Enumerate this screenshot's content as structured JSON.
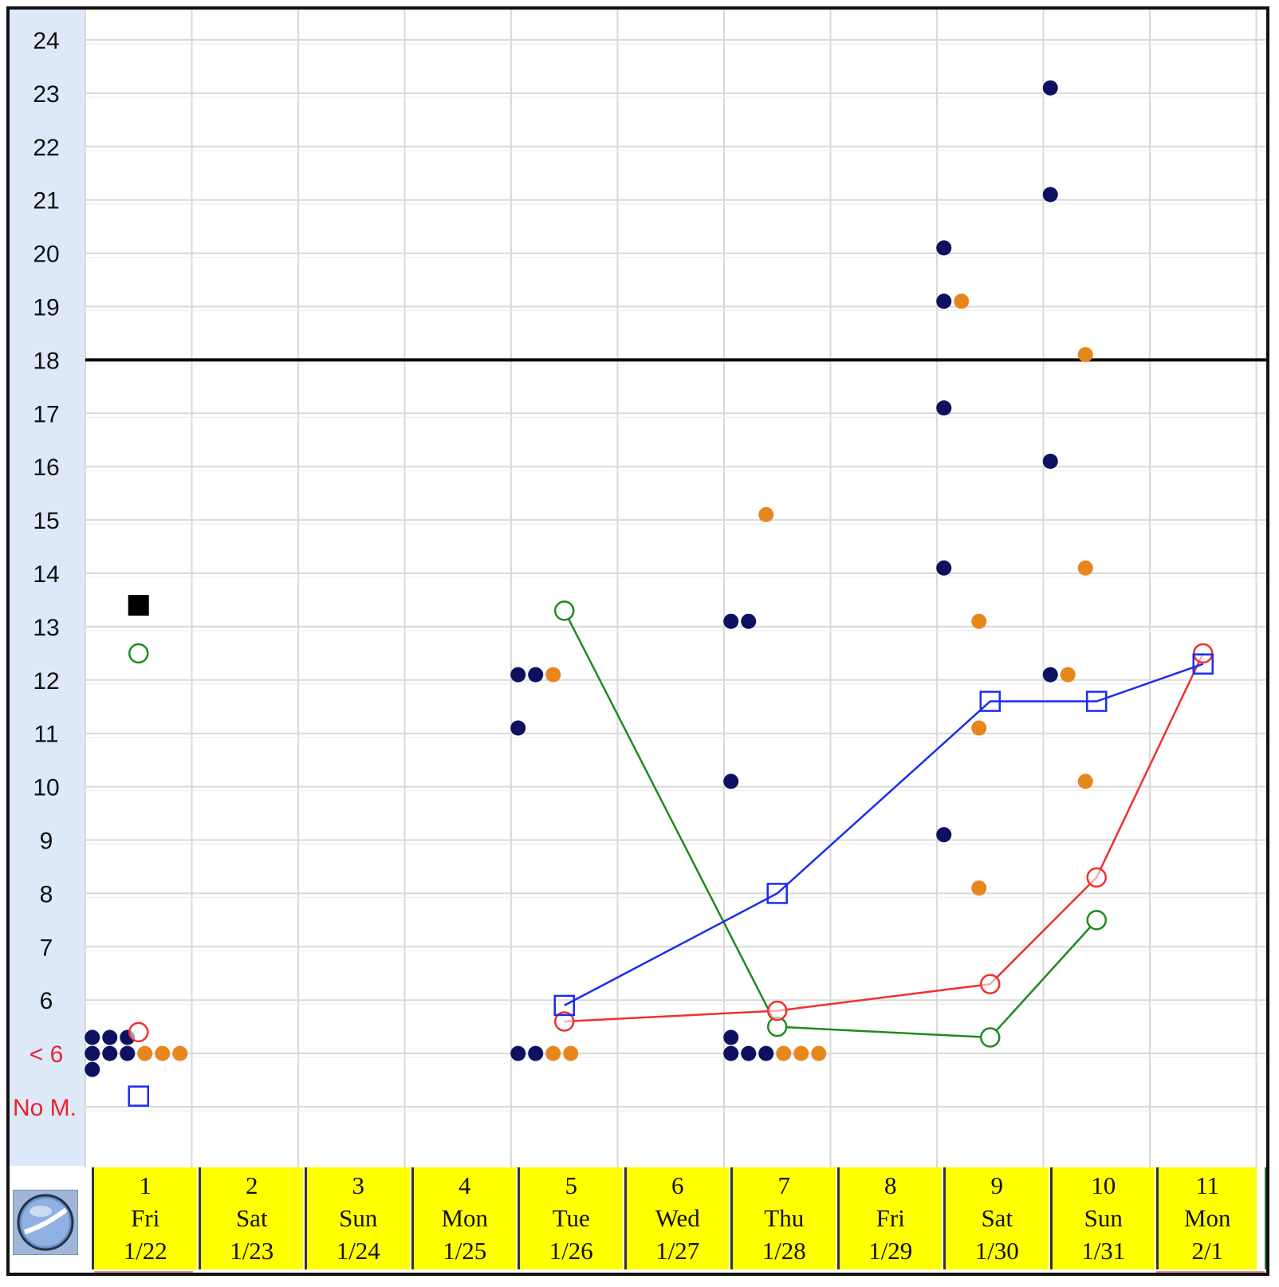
{
  "chart_data": {
    "type": "scatter",
    "y_tick_labels": [
      "24",
      "23",
      "22",
      "21",
      "20",
      "19",
      "18",
      "17",
      "16",
      "15",
      "14",
      "13",
      "12",
      "11",
      "10",
      "9",
      "8",
      "7",
      "6",
      "< 6",
      "No M."
    ],
    "ylim": [
      4,
      24
    ],
    "threshold_line": 18,
    "grid": true,
    "days": [
      {
        "num": "1",
        "dow": "Fri",
        "date": "1/22"
      },
      {
        "num": "2",
        "dow": "Sat",
        "date": "1/23"
      },
      {
        "num": "3",
        "dow": "Sun",
        "date": "1/24"
      },
      {
        "num": "4",
        "dow": "Mon",
        "date": "1/25"
      },
      {
        "num": "5",
        "dow": "Tue",
        "date": "1/26"
      },
      {
        "num": "6",
        "dow": "Wed",
        "date": "1/27"
      },
      {
        "num": "7",
        "dow": "Thu",
        "date": "1/28"
      },
      {
        "num": "8",
        "dow": "Fri",
        "date": "1/29"
      },
      {
        "num": "9",
        "dow": "Sat",
        "date": "1/30"
      },
      {
        "num": "10",
        "dow": "Sun",
        "date": "1/31"
      },
      {
        "num": "11",
        "dow": "Mon",
        "date": "2/1"
      }
    ],
    "navy_dots": [
      {
        "day": 1,
        "y": 5.3
      },
      {
        "day": 1,
        "y": 5.3
      },
      {
        "day": 1,
        "y": 5.3
      },
      {
        "day": 1,
        "y": 5.0
      },
      {
        "day": 1,
        "y": 5.0
      },
      {
        "day": 1,
        "y": 5.0
      },
      {
        "day": 1,
        "y": 4.7
      },
      {
        "day": 5,
        "y": 12.1
      },
      {
        "day": 5,
        "y": 12.1
      },
      {
        "day": 5,
        "y": 11.1
      },
      {
        "day": 5,
        "y": 5.0
      },
      {
        "day": 5,
        "y": 5.0
      },
      {
        "day": 7,
        "y": 13.1
      },
      {
        "day": 7,
        "y": 13.1
      },
      {
        "day": 7,
        "y": 10.1
      },
      {
        "day": 7,
        "y": 5.3
      },
      {
        "day": 7,
        "y": 5.0
      },
      {
        "day": 7,
        "y": 5.0
      },
      {
        "day": 7,
        "y": 5.0
      },
      {
        "day": 9,
        "y": 20.1
      },
      {
        "day": 9,
        "y": 19.1
      },
      {
        "day": 9,
        "y": 17.1
      },
      {
        "day": 9,
        "y": 14.1
      },
      {
        "day": 9,
        "y": 9.1
      },
      {
        "day": 10,
        "y": 23.1
      },
      {
        "day": 10,
        "y": 21.1
      },
      {
        "day": 10,
        "y": 16.1
      },
      {
        "day": 10,
        "y": 12.1
      }
    ],
    "orange_dots": [
      {
        "day": 1,
        "y": 5.0
      },
      {
        "day": 1,
        "y": 5.0
      },
      {
        "day": 1,
        "y": 5.0
      },
      {
        "day": 5,
        "y": 12.1
      },
      {
        "day": 5,
        "y": 5.0
      },
      {
        "day": 5,
        "y": 5.0
      },
      {
        "day": 7,
        "y": 15.1
      },
      {
        "day": 7,
        "y": 5.0
      },
      {
        "day": 7,
        "y": 5.0
      },
      {
        "day": 7,
        "y": 5.0
      },
      {
        "day": 9,
        "y": 19.1
      },
      {
        "day": 9,
        "y": 13.1
      },
      {
        "day": 9,
        "y": 11.1
      },
      {
        "day": 9,
        "y": 8.1
      },
      {
        "day": 10,
        "y": 18.1
      },
      {
        "day": 10,
        "y": 14.1
      },
      {
        "day": 10,
        "y": 12.1
      },
      {
        "day": 10,
        "y": 10.1
      }
    ],
    "blue_squares": [
      {
        "day": 1,
        "y": 4.2
      },
      {
        "day": 5,
        "y": 5.9
      },
      {
        "day": 7,
        "y": 8.0
      },
      {
        "day": 9,
        "y": 11.6
      },
      {
        "day": 10,
        "y": 11.6
      },
      {
        "day": 11,
        "y": 12.3
      }
    ],
    "red_circles": [
      {
        "day": 1,
        "y": 5.4
      },
      {
        "day": 5,
        "y": 5.6
      },
      {
        "day": 7,
        "y": 5.8
      },
      {
        "day": 9,
        "y": 6.3
      },
      {
        "day": 10,
        "y": 8.3
      },
      {
        "day": 11,
        "y": 12.5
      }
    ],
    "green_circles": [
      {
        "day": 1,
        "y": 12.5
      },
      {
        "day": 5,
        "y": 13.3
      },
      {
        "day": 7,
        "y": 5.5
      },
      {
        "day": 9,
        "y": 5.3
      },
      {
        "day": 10,
        "y": 7.5
      }
    ],
    "black_square": {
      "day": 1,
      "y": 13.4
    },
    "colors": {
      "navy": "#0d1160",
      "orange": "#e8861e",
      "blue": "#1c2cf0",
      "red": "#f03030",
      "green": "#1e8a1e",
      "black": "#000000",
      "header_yellow": "#ffff00",
      "axis_panel": "#dde8f8",
      "grid": "#d9d9d9",
      "red_label": "#e8242c"
    }
  },
  "icons": {
    "corner": "globe-icon"
  }
}
